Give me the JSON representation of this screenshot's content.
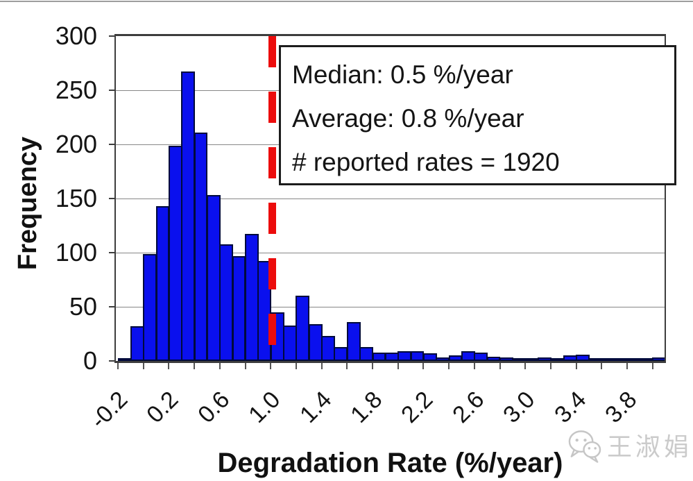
{
  "page": {
    "watermark_text": "王淑娟"
  },
  "chart_data": {
    "type": "bar",
    "title": "",
    "xlabel": "Degradation Rate (%/year)",
    "ylabel": "Frequency",
    "x_tick_labels": [
      "-0.2",
      "0.2",
      "0.6",
      "1.0",
      "1.4",
      "1.8",
      "2.2",
      "2.6",
      "3.0",
      "3.4",
      "3.8"
    ],
    "x_tick_values": [
      -0.2,
      0.0,
      0.2,
      0.4,
      0.6,
      0.8,
      1.0,
      1.2,
      1.4,
      1.6,
      1.8,
      2.0,
      2.2,
      2.4,
      2.6,
      2.8,
      3.0,
      3.2,
      3.4,
      3.6,
      3.8,
      4.0
    ],
    "y_ticks": [
      0,
      50,
      100,
      150,
      200,
      250,
      300
    ],
    "ylim": [
      0,
      300
    ],
    "xlim": [
      -0.22,
      4.11
    ],
    "grid": "horizontal-only",
    "legend": "none",
    "bin_width": 0.1,
    "bins_start": -0.2,
    "frequencies": [
      2,
      32,
      99,
      143,
      199,
      267,
      211,
      153,
      108,
      97,
      117,
      92,
      45,
      33,
      60,
      34,
      23,
      13,
      36,
      13,
      8,
      8,
      9,
      9,
      7,
      3,
      5,
      9,
      8,
      4,
      3,
      1,
      2,
      3,
      1,
      5,
      6,
      1,
      2,
      2,
      2,
      1,
      3
    ],
    "bar_color": "#0a10ee",
    "bar_border_color": "#000a3c",
    "reference_line": {
      "x": 1.0,
      "color": "#ec0c0c",
      "style": "dashed-vertical"
    },
    "annotation": {
      "median_label": "Median: 0.5 %/year",
      "average_label": "Average: 0.8 %/year",
      "count_label": "# reported rates = 1920",
      "lines": [
        "Median: 0.5 %/year",
        "Average: 0.8 %/year",
        "# reported rates = 1920"
      ]
    }
  }
}
